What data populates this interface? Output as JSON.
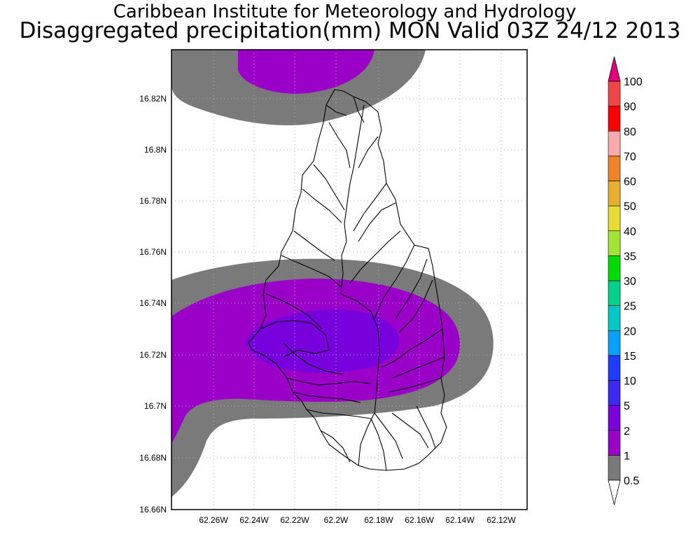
{
  "header": {
    "title": "Caribbean Institute for Meteorology and Hydrology",
    "subtitle": "Disaggregated precipitation(mm) MON Valid 03Z 24/12 2013"
  },
  "map": {
    "lat_ticks": [
      "16.82N",
      "16.8N",
      "16.78N",
      "16.76N",
      "16.74N",
      "16.72N",
      "16.7N",
      "16.68N",
      "16.66N"
    ],
    "lon_ticks": [
      "62.26W",
      "62.24W",
      "62.22W",
      "62.2W",
      "62.18W",
      "62.16W",
      "62.14W",
      "62.12W"
    ],
    "grid": true
  },
  "legend": {
    "levels": [
      "0.5",
      "1",
      "2",
      "5",
      "10",
      "15",
      "20",
      "25",
      "30",
      "35",
      "40",
      "50",
      "60",
      "70",
      "80",
      "90",
      "100"
    ],
    "colors": [
      "#ffffff",
      "#7a7a7a",
      "#9a00c8",
      "#7800dc",
      "#3c28f0",
      "#1e3cff",
      "#0aa0ff",
      "#00c8c8",
      "#00d28c",
      "#00dc00",
      "#a0e632",
      "#e6dc32",
      "#e6af2d",
      "#f08228",
      "#faaaaa",
      "#ff0000",
      "#f04646",
      "#e6007a"
    ]
  }
}
